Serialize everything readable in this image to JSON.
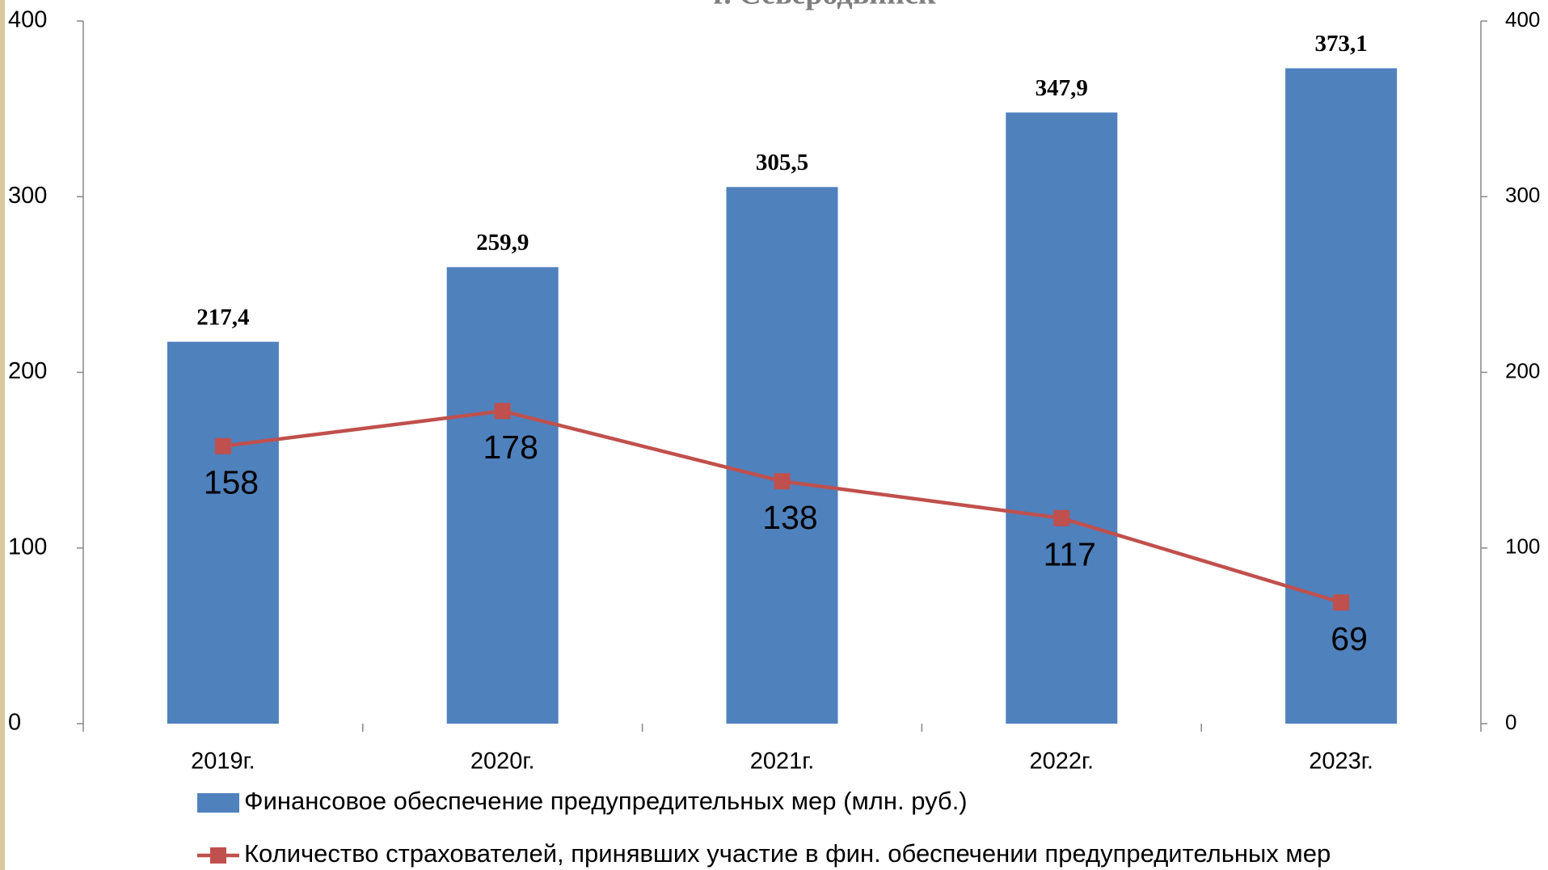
{
  "chart_data": {
    "type": "bar",
    "title": "г. Северодвинск",
    "categories": [
      "2019г.",
      "2020г.",
      "2021г.",
      "2022г.",
      "2023г."
    ],
    "series": [
      {
        "name": "Финансовое обеспечение предупредительных мер (млн. руб.)",
        "type": "bar",
        "color": "#4f81bd",
        "values": [
          217.4,
          259.9,
          305.5,
          347.9,
          373.1
        ],
        "value_labels": [
          "217,4",
          "259,9",
          "305,5",
          "347,9",
          "373,1"
        ]
      },
      {
        "name": "Количество страхователей, принявших участие в фин. обеспечении предупредительных мер",
        "type": "line",
        "color": "#c0504d",
        "axis": "y2",
        "values": [
          158,
          178,
          138,
          117,
          69
        ]
      }
    ],
    "ylim": [
      0,
      400
    ],
    "yticks": [
      0,
      100,
      200,
      300,
      400
    ],
    "y2lim": [
      0,
      400
    ],
    "y2ticks": [
      0,
      100,
      200,
      300,
      400
    ],
    "legend": "bottom"
  }
}
